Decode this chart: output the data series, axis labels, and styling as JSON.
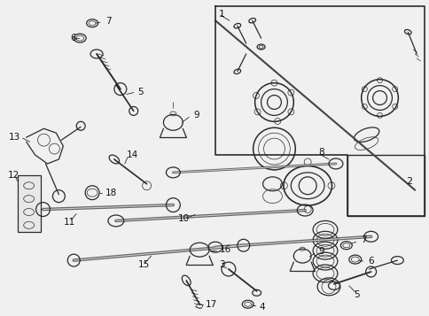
{
  "bg_color": "#f0f0f0",
  "line_color": "#2a2a2a",
  "label_color": "#111111",
  "fig_width": 4.85,
  "fig_height": 3.57,
  "dpi": 100,
  "box_color": "#e8e8e8",
  "part_lw": 0.9,
  "thin_lw": 0.5,
  "rod_lw": 2.5
}
